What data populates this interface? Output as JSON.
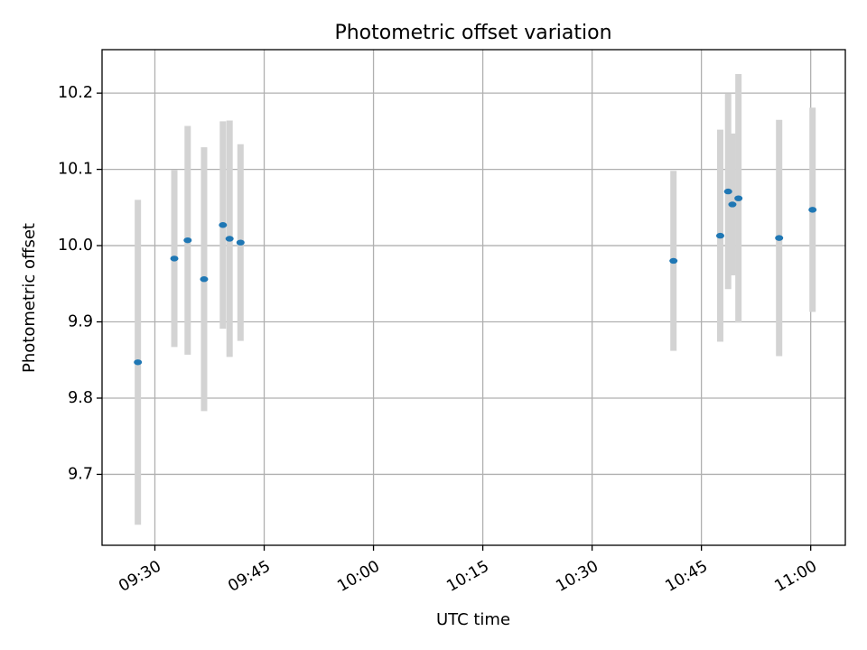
{
  "chart_data": {
    "type": "scatter",
    "title": "Photometric offset variation",
    "xlabel": "UTC time",
    "ylabel": "Photometric offset",
    "xlim": [
      "09:22:45",
      "11:04:45"
    ],
    "ylim": [
      9.607,
      10.257
    ],
    "x_ticks": [
      "09:30",
      "09:45",
      "10:00",
      "10:15",
      "10:30",
      "10:45",
      "11:00"
    ],
    "y_ticks": [
      9.7,
      9.8,
      9.9,
      10.0,
      10.1,
      10.2
    ],
    "grid": true,
    "colors": {
      "marker": "#1f77b4",
      "errorbar": "#d3d3d3",
      "grid": "#b0b0b0"
    },
    "points": [
      {
        "x": "09:27:40",
        "y": 9.847,
        "err": 0.213
      },
      {
        "x": "09:32:40",
        "y": 9.983,
        "err": 0.116
      },
      {
        "x": "09:34:30",
        "y": 10.007,
        "err": 0.15
      },
      {
        "x": "09:36:45",
        "y": 9.956,
        "err": 0.173
      },
      {
        "x": "09:39:20",
        "y": 10.027,
        "err": 0.136
      },
      {
        "x": "09:40:15",
        "y": 10.009,
        "err": 0.155
      },
      {
        "x": "09:41:45",
        "y": 10.004,
        "err": 0.129
      },
      {
        "x": "10:41:10",
        "y": 9.98,
        "err": 0.118
      },
      {
        "x": "10:47:35",
        "y": 10.013,
        "err": 0.139
      },
      {
        "x": "10:48:40",
        "y": 10.071,
        "err": 0.128
      },
      {
        "x": "10:49:15",
        "y": 10.054,
        "err": 0.093
      },
      {
        "x": "10:50:05",
        "y": 10.062,
        "err": 0.163
      },
      {
        "x": "10:55:40",
        "y": 10.01,
        "err": 0.155
      },
      {
        "x": "11:00:15",
        "y": 10.047,
        "err": 0.134
      }
    ]
  }
}
